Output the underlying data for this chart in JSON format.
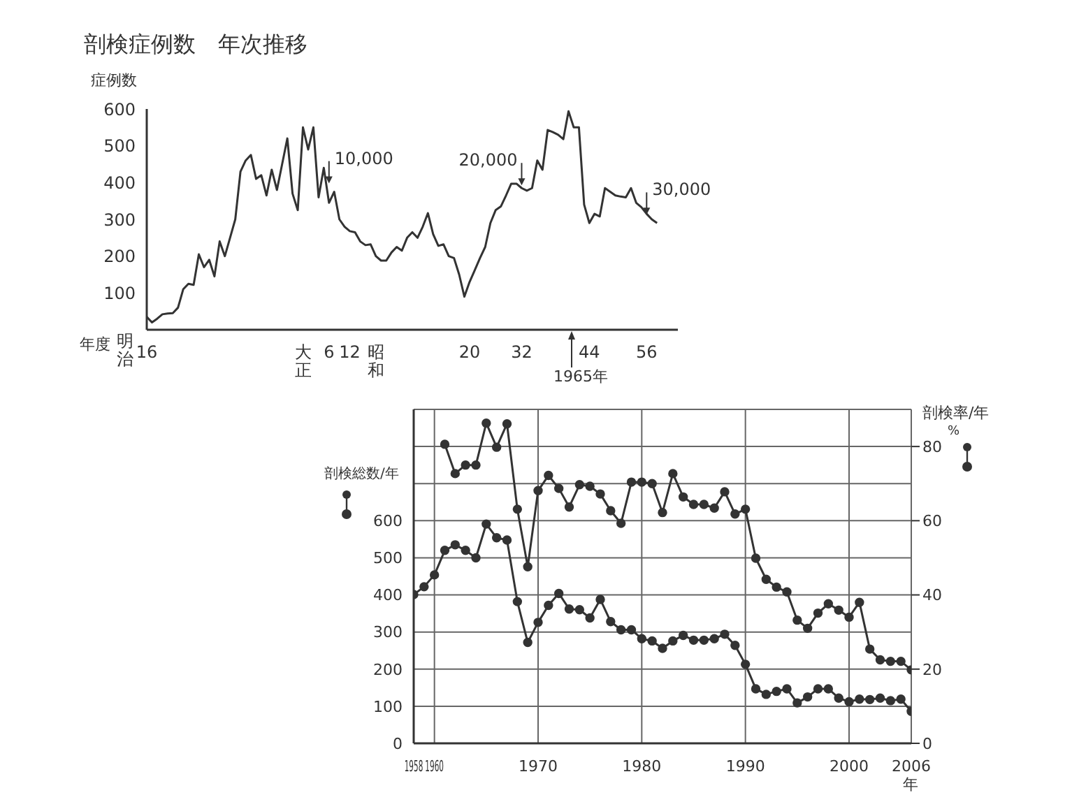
{
  "chart_data": [
    {
      "type": "line",
      "title": "剖検症例数　年次推移",
      "ylabel": "症例数",
      "xlabel": "年度",
      "marker": "none",
      "line_style": "solid",
      "grid": false,
      "color": "#333333",
      "categories": [
        "16",
        null,
        null,
        null,
        null,
        null,
        null,
        null,
        null,
        null,
        null,
        null,
        null,
        null,
        null,
        null,
        null,
        null,
        null,
        null,
        null,
        null,
        null,
        null,
        null,
        null,
        null,
        null,
        null,
        null,
        "大正",
        null,
        null,
        null,
        null,
        "6",
        null,
        null,
        null,
        "12",
        null,
        null,
        null,
        null,
        "昭和",
        null,
        null,
        null,
        null,
        null,
        null,
        null,
        null,
        null,
        null,
        null,
        null,
        null,
        null,
        null,
        null,
        null,
        "20",
        null,
        null,
        null,
        null,
        null,
        null,
        null,
        null,
        null,
        "32",
        null,
        null,
        null,
        null,
        null,
        null,
        null,
        null,
        null,
        null,
        null,
        null,
        "44",
        null,
        null,
        null,
        null,
        null,
        null,
        null,
        null,
        null,
        null,
        "56",
        null,
        null,
        null,
        null,
        null,
        null
      ],
      "values": [
        35,
        20,
        30,
        42,
        44,
        45,
        60,
        110,
        125,
        122,
        205,
        170,
        190,
        145,
        240,
        200,
        250,
        300,
        430,
        460,
        475,
        410,
        420,
        365,
        435,
        380,
        450,
        520,
        370,
        325,
        550,
        490,
        550,
        360,
        440,
        345,
        375,
        300,
        280,
        268,
        265,
        240,
        230,
        232,
        200,
        188,
        188,
        210,
        225,
        215,
        250,
        265,
        250,
        280,
        317,
        260,
        228,
        232,
        200,
        195,
        150,
        90,
        130,
        162,
        195,
        225,
        290,
        325,
        335,
        365,
        397,
        397,
        385,
        378,
        385,
        460,
        435,
        543,
        537,
        530,
        518,
        594,
        550,
        550,
        340,
        290,
        315,
        308,
        385,
        375,
        365,
        362,
        360,
        385,
        345,
        333,
        315,
        300,
        290,
        null,
        null,
        null,
        null
      ],
      "ylim": [
        0,
        600
      ],
      "yticks": [
        100,
        200,
        300,
        400,
        500,
        600
      ],
      "annotations": [
        "明治",
        {
          "text": "10,000",
          "x": "6",
          "y": 390
        },
        {
          "text": "20,000",
          "x": "32",
          "y": 385
        },
        {
          "text": "30,000",
          "x": "56",
          "y": 305
        },
        "1965年"
      ]
    },
    {
      "type": "line",
      "ylabel": "剖検総数/年",
      "y2label": "剖検率/年",
      "xlabel": "年",
      "marker": "circle",
      "line_style": "solid",
      "grid": true,
      "series": [
        {
          "color": "#333333",
          "x": [
            1958,
            1959,
            1960,
            1961,
            1962,
            1963,
            1964,
            1965,
            1966,
            1967,
            1968,
            1969,
            1970,
            1971,
            1972,
            1973,
            1974,
            1975,
            1976,
            1977,
            1978,
            1979,
            1980,
            1981,
            1982,
            1983,
            1984,
            1985,
            1986,
            1987,
            1988,
            1989,
            1990,
            1991,
            1992,
            1993,
            1994,
            1995,
            1996,
            1997,
            1998,
            1999,
            2000,
            2001,
            2002,
            2003,
            2004,
            2005,
            2006
          ],
          "values": [
            401,
            422,
            454,
            520,
            535,
            520,
            500,
            591,
            554,
            548,
            382,
            272,
            326,
            372,
            404,
            362,
            360,
            338,
            388,
            328,
            306,
            306,
            282,
            276,
            256,
            276,
            291,
            278,
            278,
            282,
            294,
            264,
            213,
            147,
            132,
            140,
            147,
            109,
            125,
            147,
            147,
            122,
            112,
            119,
            118,
            122,
            115,
            119,
            86
          ]
        },
        {
          "color": "#333333",
          "axis": "y2",
          "x": [
            1961,
            1962,
            1963,
            1964,
            1965,
            1966,
            1967,
            1968,
            1969,
            1970,
            1971,
            1972,
            1973,
            1974,
            1975,
            1976,
            1977,
            1978,
            1979,
            1980,
            1981,
            1982,
            1983,
            1984,
            1985,
            1986,
            1987,
            1988,
            1989,
            1990,
            1991,
            1992,
            1993,
            1994,
            1995,
            1996,
            1997,
            1998,
            1999,
            2000,
            2001,
            2002,
            2003,
            2004,
            2005,
            2006
          ],
          "values": [
            80.6,
            72.7,
            75.0,
            75.0,
            86.3,
            79.8,
            86.1,
            63.1,
            47.6,
            68.1,
            72.2,
            68.7,
            63.7,
            69.7,
            69.3,
            67.2,
            62.7,
            59.3,
            70.4,
            70.4,
            70.0,
            62.2,
            72.7,
            66.4,
            64.4,
            64.4,
            63.4,
            67.8,
            61.8,
            63.1,
            49.9,
            44.2,
            42.1,
            40.8,
            33.2,
            31.0,
            35.1,
            37.6,
            35.9,
            34.0,
            38.0,
            25.4,
            22.5,
            22.1,
            22.1,
            19.8
          ]
        }
      ],
      "xlim": [
        1958,
        2006
      ],
      "xticks": [
        1958,
        1960,
        1970,
        1980,
        1990,
        2000,
        2006
      ],
      "ylim": [
        0,
        900
      ],
      "yticks": [
        0,
        100,
        200,
        300,
        400,
        500,
        600,
        {
          "value": 700,
          "label": null
        },
        {
          "value": 800,
          "label": null
        }
      ],
      "y2lim": [
        0,
        90
      ],
      "y2ticks": [
        0,
        20,
        40,
        60,
        80
      ],
      "annotations": [
        "%"
      ]
    }
  ]
}
